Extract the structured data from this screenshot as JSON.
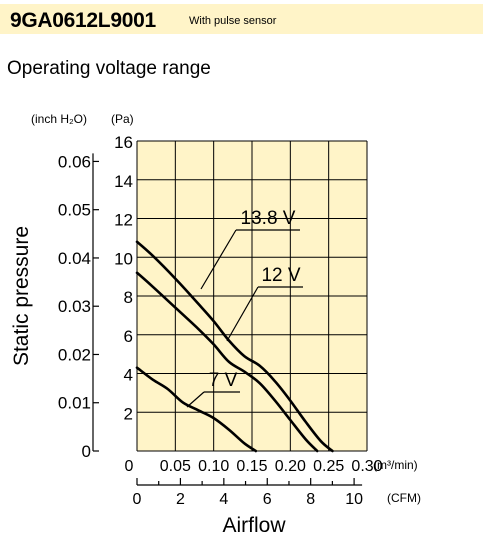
{
  "header": {
    "model": "9GA0612L9001",
    "note": "With pulse sensor",
    "subtitle": "Operating voltage range"
  },
  "colors": {
    "title_bg": "#fff4c8",
    "plot_bg": "#fff4c8",
    "ink": "#000000"
  },
  "chart_data": {
    "type": "line",
    "title": "Operating voltage range",
    "xlabel": "Airflow",
    "ylabel": "Static pressure",
    "x_unit": "(m³/min)",
    "x_unit_sup": "3",
    "x2_unit": "(CFM)",
    "y_unit_pa": "(Pa)",
    "y_unit_inch": "(inch H₂O)",
    "x_ticks": [
      "0",
      "0.05",
      "0.10",
      "0.15",
      "0.20",
      "0.25",
      "0.30"
    ],
    "x_tick_values": [
      0,
      0.05,
      0.1,
      0.15,
      0.2,
      0.25,
      0.3
    ],
    "x2_ticks": [
      "0",
      "2",
      "4",
      "6",
      "8",
      "10"
    ],
    "x2_tick_values": [
      0,
      2,
      4,
      6,
      8,
      10
    ],
    "y_ticks_pa": [
      "2",
      "4",
      "6",
      "8",
      "10",
      "12",
      "14",
      "16"
    ],
    "y_tick_values_pa": [
      2,
      4,
      6,
      8,
      10,
      12,
      14,
      16
    ],
    "y_ticks_inch": [
      "0",
      "0.01",
      "0.02",
      "0.03",
      "0.04",
      "0.05",
      "0.06"
    ],
    "y_tick_values_inch": [
      0,
      0.01,
      0.02,
      0.03,
      0.04,
      0.05,
      0.06
    ],
    "xlim": [
      0,
      0.3
    ],
    "ylim": [
      0,
      16
    ],
    "grid": true,
    "series": [
      {
        "name": "13.8 V",
        "x": [
          0,
          0.02,
          0.05,
          0.08,
          0.1,
          0.12,
          0.14,
          0.16,
          0.18,
          0.2,
          0.22,
          0.24,
          0.255
        ],
        "y": [
          10.8,
          10.1,
          8.9,
          7.6,
          6.7,
          5.7,
          4.9,
          4.4,
          3.6,
          2.6,
          1.5,
          0.5,
          0
        ]
      },
      {
        "name": "12 V",
        "x": [
          0,
          0.02,
          0.05,
          0.08,
          0.1,
          0.12,
          0.14,
          0.16,
          0.18,
          0.2,
          0.22,
          0.235
        ],
        "y": [
          9.2,
          8.5,
          7.4,
          6.3,
          5.5,
          4.6,
          4.1,
          3.5,
          2.6,
          1.6,
          0.6,
          0
        ]
      },
      {
        "name": "7 V",
        "x": [
          0,
          0.02,
          0.04,
          0.06,
          0.08,
          0.1,
          0.12,
          0.14,
          0.155
        ],
        "y": [
          4.3,
          3.7,
          3.2,
          2.5,
          2.1,
          1.7,
          1.1,
          0.4,
          0
        ]
      }
    ],
    "annotations": [
      "13.8 V",
      "12 V",
      "7 V"
    ]
  }
}
